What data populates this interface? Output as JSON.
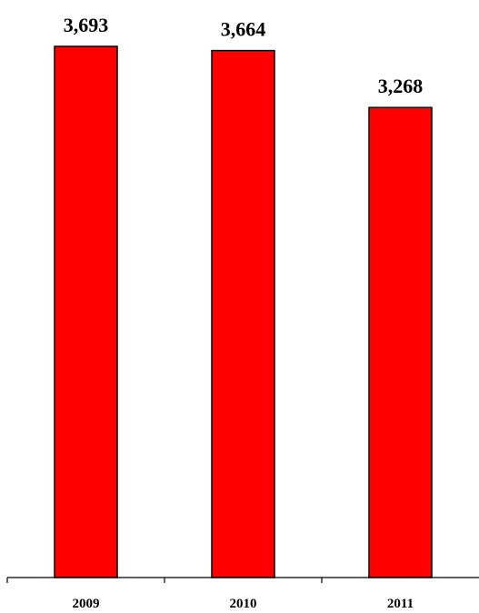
{
  "chart_data": {
    "type": "bar",
    "categories": [
      "2009",
      "2010",
      "2011"
    ],
    "values": [
      3693,
      3664,
      3268
    ],
    "value_labels": [
      "3,693",
      "3,664",
      "3,268"
    ],
    "title": "",
    "xlabel": "",
    "ylabel": "",
    "ylim": [
      0,
      3693
    ],
    "grid": false,
    "legend": "none",
    "bar_color": "#ff0000",
    "bar_edge_color": "#000000"
  }
}
